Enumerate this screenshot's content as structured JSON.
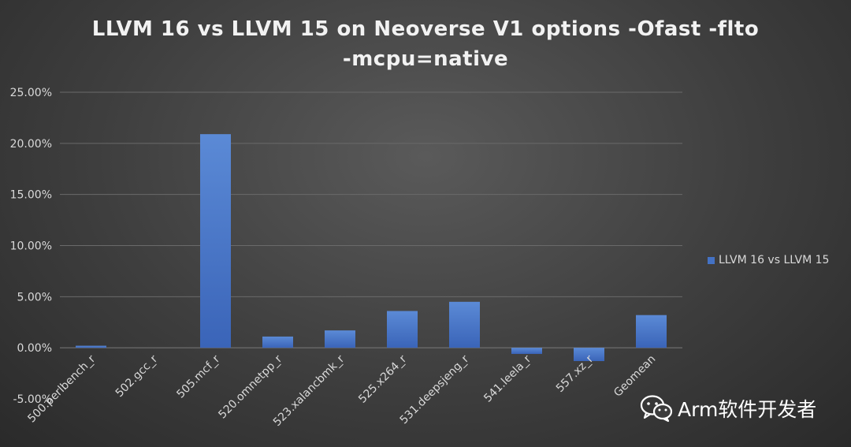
{
  "chart_data": {
    "type": "bar",
    "title_line1": "LLVM 16 vs LLVM 15 on Neoverse V1 options -Ofast -flto",
    "title_line2": "-mcpu=native",
    "categories": [
      "500.perlbench_r",
      "502.gcc_r",
      "505.mcf_r",
      "520.omnetpp_r",
      "523.xalancbmk_r",
      "525.x264_r",
      "531.deepsjeng_r",
      "541.leela_r",
      "557.xz_r",
      "Geomean"
    ],
    "series": [
      {
        "name": "LLVM 16 vs LLVM 15",
        "values": [
          0.2,
          0.0,
          20.9,
          1.1,
          1.7,
          3.6,
          4.5,
          -0.6,
          -1.3,
          3.2
        ]
      }
    ],
    "y_ticks": [
      "25.00%",
      "20.00%",
      "15.00%",
      "10.00%",
      "5.00%",
      "0.00%",
      "-5.00%"
    ],
    "ylim": [
      -5,
      25
    ],
    "grid": true,
    "legend": "right",
    "colors": {
      "bar": "#4472c4",
      "bar_light": "#5b8ad6",
      "grid": "#6a6a6a",
      "text": "#d9d9d9",
      "title": "#f2f2f2"
    }
  },
  "watermark": {
    "text": "Arm软件开发者",
    "icon": "wechat-icon"
  }
}
